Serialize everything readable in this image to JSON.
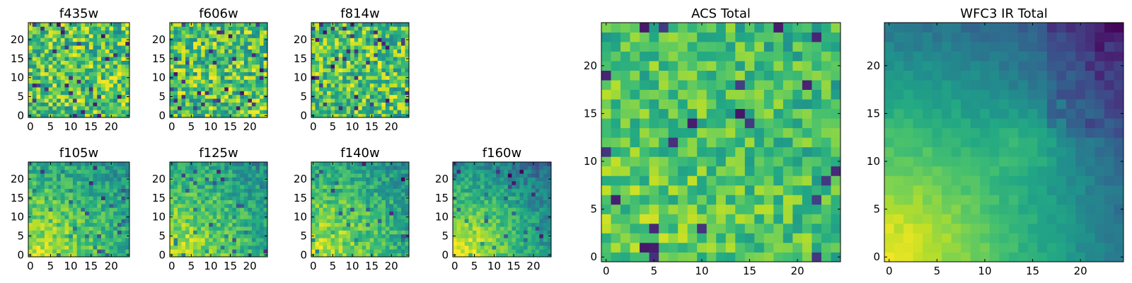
{
  "figure": {
    "colormap": "viridis",
    "colorscale_note": "color intensity per pixel (no colorbar shown)"
  },
  "chart_data": [
    {
      "type": "heatmap",
      "title": "f435w",
      "xlim": [
        -0.5,
        24.5
      ],
      "ylim": [
        -0.5,
        24.5
      ],
      "xticks": [
        "0",
        "5",
        "10",
        "15",
        "20"
      ],
      "yticks": [
        "0",
        "5",
        "10",
        "15",
        "20"
      ],
      "grid": false,
      "pattern": "noisy",
      "seed": 11,
      "data_status": "pixel values not recoverable; approximate pattern"
    },
    {
      "type": "heatmap",
      "title": "f606w",
      "xlim": [
        -0.5,
        24.5
      ],
      "ylim": [
        -0.5,
        24.5
      ],
      "xticks": [
        "0",
        "5",
        "10",
        "15",
        "20"
      ],
      "yticks": [
        "0",
        "5",
        "10",
        "15",
        "20"
      ],
      "grid": false,
      "pattern": "noisy",
      "seed": 22
    },
    {
      "type": "heatmap",
      "title": "f814w",
      "xlim": [
        -0.5,
        24.5
      ],
      "ylim": [
        -0.5,
        24.5
      ],
      "xticks": [
        "0",
        "5",
        "10",
        "15",
        "20"
      ],
      "yticks": [
        "0",
        "5",
        "10",
        "15",
        "20"
      ],
      "grid": false,
      "pattern": "noisy",
      "seed": 33
    },
    {
      "type": "heatmap",
      "title": "f105w",
      "xlim": [
        -0.5,
        24.5
      ],
      "ylim": [
        -0.5,
        24.5
      ],
      "xticks": [
        "0",
        "5",
        "10",
        "15",
        "20"
      ],
      "yticks": [
        "0",
        "5",
        "10",
        "15",
        "20"
      ],
      "grid": false,
      "pattern": "gradient",
      "seed": 44
    },
    {
      "type": "heatmap",
      "title": "f125w",
      "xlim": [
        -0.5,
        24.5
      ],
      "ylim": [
        -0.5,
        24.5
      ],
      "xticks": [
        "0",
        "5",
        "10",
        "15",
        "20"
      ],
      "yticks": [
        "0",
        "5",
        "10",
        "15",
        "20"
      ],
      "grid": false,
      "pattern": "gradient",
      "seed": 55
    },
    {
      "type": "heatmap",
      "title": "f140w",
      "xlim": [
        -0.5,
        24.5
      ],
      "ylim": [
        -0.5,
        24.5
      ],
      "xticks": [
        "0",
        "5",
        "10",
        "15",
        "20"
      ],
      "yticks": [
        "0",
        "5",
        "10",
        "15",
        "20"
      ],
      "grid": false,
      "pattern": "gradient",
      "seed": 66
    },
    {
      "type": "heatmap",
      "title": "f160w",
      "xlim": [
        -0.5,
        24.5
      ],
      "ylim": [
        -0.5,
        24.5
      ],
      "xticks": [
        "0",
        "5",
        "10",
        "15",
        "20"
      ],
      "yticks": [
        "0",
        "5",
        "10",
        "15",
        "20"
      ],
      "grid": false,
      "pattern": "gradient-strong",
      "seed": 77
    },
    {
      "type": "heatmap",
      "title": "ACS Total",
      "xlim": [
        -0.5,
        24.5
      ],
      "ylim": [
        -0.5,
        24.5
      ],
      "xticks": [
        "0",
        "5",
        "10",
        "15",
        "20"
      ],
      "yticks": [
        "0",
        "5",
        "10",
        "15",
        "20"
      ],
      "grid": false,
      "pattern": "noisy-bright",
      "seed": 88
    },
    {
      "type": "heatmap",
      "title": "WFC3 IR Total",
      "xlim": [
        -0.5,
        24.5
      ],
      "ylim": [
        -0.5,
        24.5
      ],
      "xticks": [
        "0",
        "5",
        "10",
        "15",
        "20"
      ],
      "yticks": [
        "0",
        "5",
        "10",
        "15",
        "20"
      ],
      "grid": false,
      "pattern": "gradient-smooth",
      "seed": 99
    }
  ]
}
